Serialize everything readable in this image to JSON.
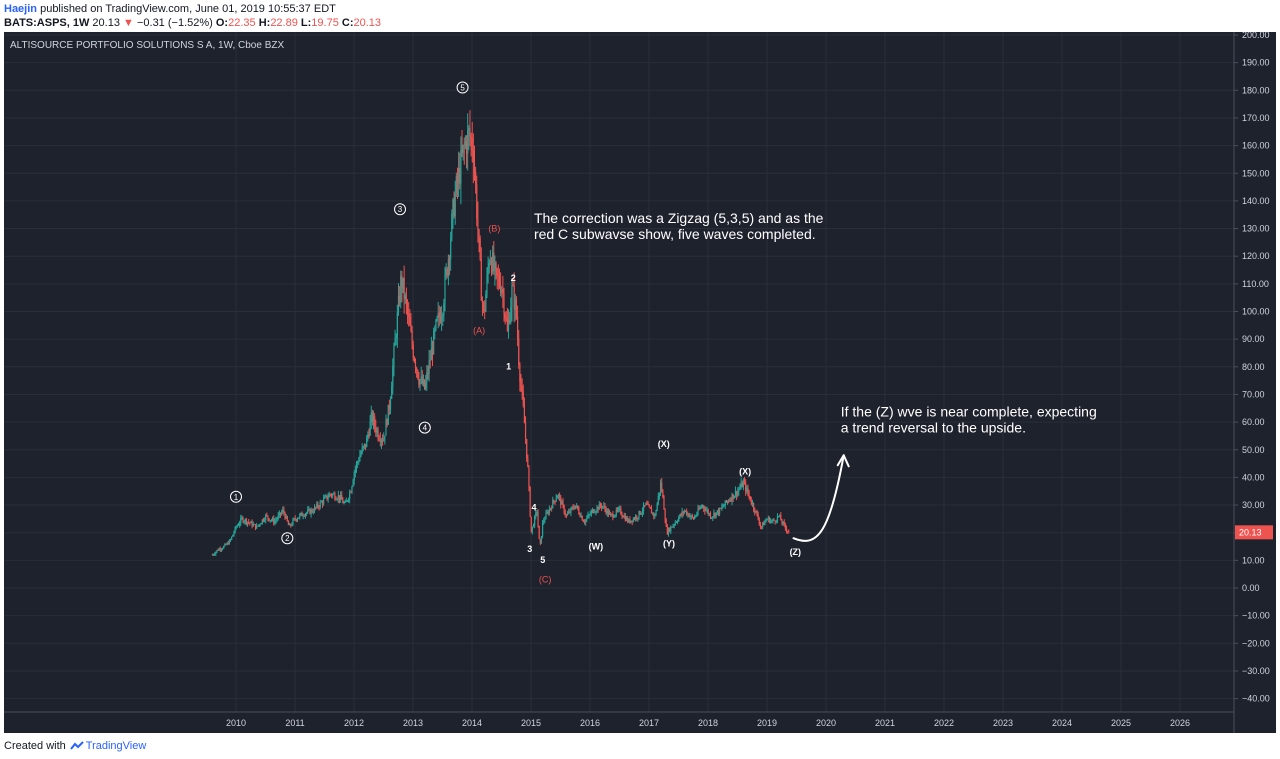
{
  "header": {
    "user": "Haejin",
    "published_text": "published on TradingView.com, June 01, 2019 10:55:37 EDT",
    "symbol": "BATS:ASPS, 1W",
    "last": "20.13",
    "change": "−0.31 (−1.52%)",
    "o_label": "O:",
    "o_value": "22.35",
    "h_label": "H:",
    "h_value": "22.89",
    "l_label": "L:",
    "l_value": "19.75",
    "c_label": "C:",
    "c_value": "20.13"
  },
  "footer": {
    "created_with": "Created with",
    "brand": "TradingView"
  },
  "colors": {
    "background": "#1e222d",
    "up": "#26a69a",
    "down": "#ef5350",
    "grid": "#2a2e39",
    "text": "#d1d4dc",
    "price_tag": "#ef5350"
  },
  "chart_data": {
    "type": "candlestick",
    "title": "ALTISOURCE PORTFOLIO SOLUTIONS S A, 1W, Cboe BZX",
    "x_ticks": [
      "2010",
      "2011",
      "2012",
      "2013",
      "2014",
      "2015",
      "2016",
      "2017",
      "2018",
      "2019",
      "2020",
      "2021",
      "2022",
      "2023",
      "2024",
      "2025",
      "2026"
    ],
    "xlim": [
      2009.5,
      2026.7
    ],
    "y_ticks": [
      "200.00",
      "190.00",
      "180.00",
      "170.00",
      "160.00",
      "150.00",
      "140.00",
      "130.00",
      "120.00",
      "110.00",
      "100.00",
      "90.00",
      "80.00",
      "70.00",
      "60.00",
      "50.00",
      "40.00",
      "30.00",
      "20.00",
      "10.00",
      "0.00",
      "−10.00",
      "−20.00",
      "−30.00",
      "−40.00"
    ],
    "ylim": [
      -44,
      200
    ],
    "last_price_tag": "20.13",
    "grid": true,
    "price_path": [
      [
        2009.6,
        12
      ],
      [
        2009.7,
        14
      ],
      [
        2009.8,
        15
      ],
      [
        2009.9,
        17
      ],
      [
        2010.0,
        22
      ],
      [
        2010.1,
        25
      ],
      [
        2010.2,
        24
      ],
      [
        2010.35,
        22
      ],
      [
        2010.5,
        26
      ],
      [
        2010.65,
        24
      ],
      [
        2010.8,
        28
      ],
      [
        2010.9,
        22
      ],
      [
        2011.0,
        25
      ],
      [
        2011.15,
        27
      ],
      [
        2011.3,
        28
      ],
      [
        2011.45,
        31
      ],
      [
        2011.6,
        34
      ],
      [
        2011.75,
        33
      ],
      [
        2011.85,
        30
      ],
      [
        2011.95,
        36
      ],
      [
        2012.0,
        42
      ],
      [
        2012.1,
        48
      ],
      [
        2012.2,
        52
      ],
      [
        2012.3,
        62
      ],
      [
        2012.4,
        56
      ],
      [
        2012.5,
        54
      ],
      [
        2012.6,
        66
      ],
      [
        2012.7,
        90
      ],
      [
        2012.8,
        112
      ],
      [
        2012.9,
        100
      ],
      [
        2013.0,
        86
      ],
      [
        2013.1,
        76
      ],
      [
        2013.2,
        72
      ],
      [
        2013.3,
        84
      ],
      [
        2013.4,
        95
      ],
      [
        2013.5,
        102
      ],
      [
        2013.6,
        120
      ],
      [
        2013.7,
        140
      ],
      [
        2013.8,
        152
      ],
      [
        2013.88,
        160
      ],
      [
        2013.95,
        164
      ],
      [
        2014.02,
        160
      ],
      [
        2014.1,
        130
      ],
      [
        2014.15,
        110
      ],
      [
        2014.2,
        98
      ],
      [
        2014.3,
        122
      ],
      [
        2014.4,
        112
      ],
      [
        2014.5,
        110
      ],
      [
        2014.55,
        102
      ],
      [
        2014.6,
        92
      ],
      [
        2014.68,
        108
      ],
      [
        2014.75,
        100
      ],
      [
        2014.8,
        80
      ],
      [
        2014.88,
        62
      ],
      [
        2014.95,
        42
      ],
      [
        2015.0,
        20
      ],
      [
        2015.1,
        28
      ],
      [
        2015.15,
        14
      ],
      [
        2015.2,
        24
      ],
      [
        2015.3,
        28
      ],
      [
        2015.45,
        34
      ],
      [
        2015.6,
        26
      ],
      [
        2015.75,
        30
      ],
      [
        2015.9,
        24
      ],
      [
        2016.05,
        28
      ],
      [
        2016.2,
        30
      ],
      [
        2016.35,
        26
      ],
      [
        2016.5,
        28
      ],
      [
        2016.65,
        24
      ],
      [
        2016.8,
        26
      ],
      [
        2016.95,
        30
      ],
      [
        2017.1,
        26
      ],
      [
        2017.2,
        38
      ],
      [
        2017.25,
        30
      ],
      [
        2017.3,
        20
      ],
      [
        2017.45,
        24
      ],
      [
        2017.6,
        28
      ],
      [
        2017.75,
        25
      ],
      [
        2017.9,
        30
      ],
      [
        2018.05,
        26
      ],
      [
        2018.2,
        28
      ],
      [
        2018.35,
        32
      ],
      [
        2018.5,
        35
      ],
      [
        2018.6,
        38
      ],
      [
        2018.7,
        33
      ],
      [
        2018.8,
        28
      ],
      [
        2018.9,
        22
      ],
      [
        2019.0,
        25
      ],
      [
        2019.1,
        24
      ],
      [
        2019.2,
        26
      ],
      [
        2019.3,
        22
      ],
      [
        2019.38,
        20.13
      ]
    ],
    "annotations": {
      "circled": [
        {
          "label": "1",
          "x": 2010.0,
          "y": 33
        },
        {
          "label": "2",
          "x": 2010.87,
          "y": 18
        },
        {
          "label": "3",
          "x": 2012.78,
          "y": 137
        },
        {
          "label": "4",
          "x": 2013.2,
          "y": 58
        },
        {
          "label": "5",
          "x": 2013.84,
          "y": 181
        }
      ],
      "red": [
        {
          "label": "(B)",
          "x": 2014.38,
          "y": 129
        },
        {
          "label": "(A)",
          "x": 2014.12,
          "y": 92
        },
        {
          "label": "(C)",
          "x": 2015.24,
          "y": 2
        }
      ],
      "white": [
        {
          "label": "2",
          "x": 2014.7,
          "y": 111
        },
        {
          "label": "1",
          "x": 2014.62,
          "y": 79
        },
        {
          "label": "4",
          "x": 2015.05,
          "y": 28
        },
        {
          "label": "3",
          "x": 2014.98,
          "y": 13
        },
        {
          "label": "5",
          "x": 2015.2,
          "y": 9
        },
        {
          "label": "(W)",
          "x": 2016.1,
          "y": 14
        },
        {
          "label": "(X)",
          "x": 2017.25,
          "y": 51
        },
        {
          "label": "(Y)",
          "x": 2017.34,
          "y": 15
        },
        {
          "label": "(X)",
          "x": 2018.63,
          "y": 41
        },
        {
          "label": "(Z)",
          "x": 2019.48,
          "y": 12
        }
      ],
      "notes": [
        {
          "lines": [
            "The correction was a Zigzag (5,3,5) and as the",
            "red C subwavse show, five waves completed."
          ],
          "x": 2015.05,
          "y": 132
        },
        {
          "lines": [
            "If the (Z) wve is near complete, expecting",
            "a trend reversal to the upside."
          ],
          "x": 2020.25,
          "y": 62
        }
      ]
    }
  }
}
